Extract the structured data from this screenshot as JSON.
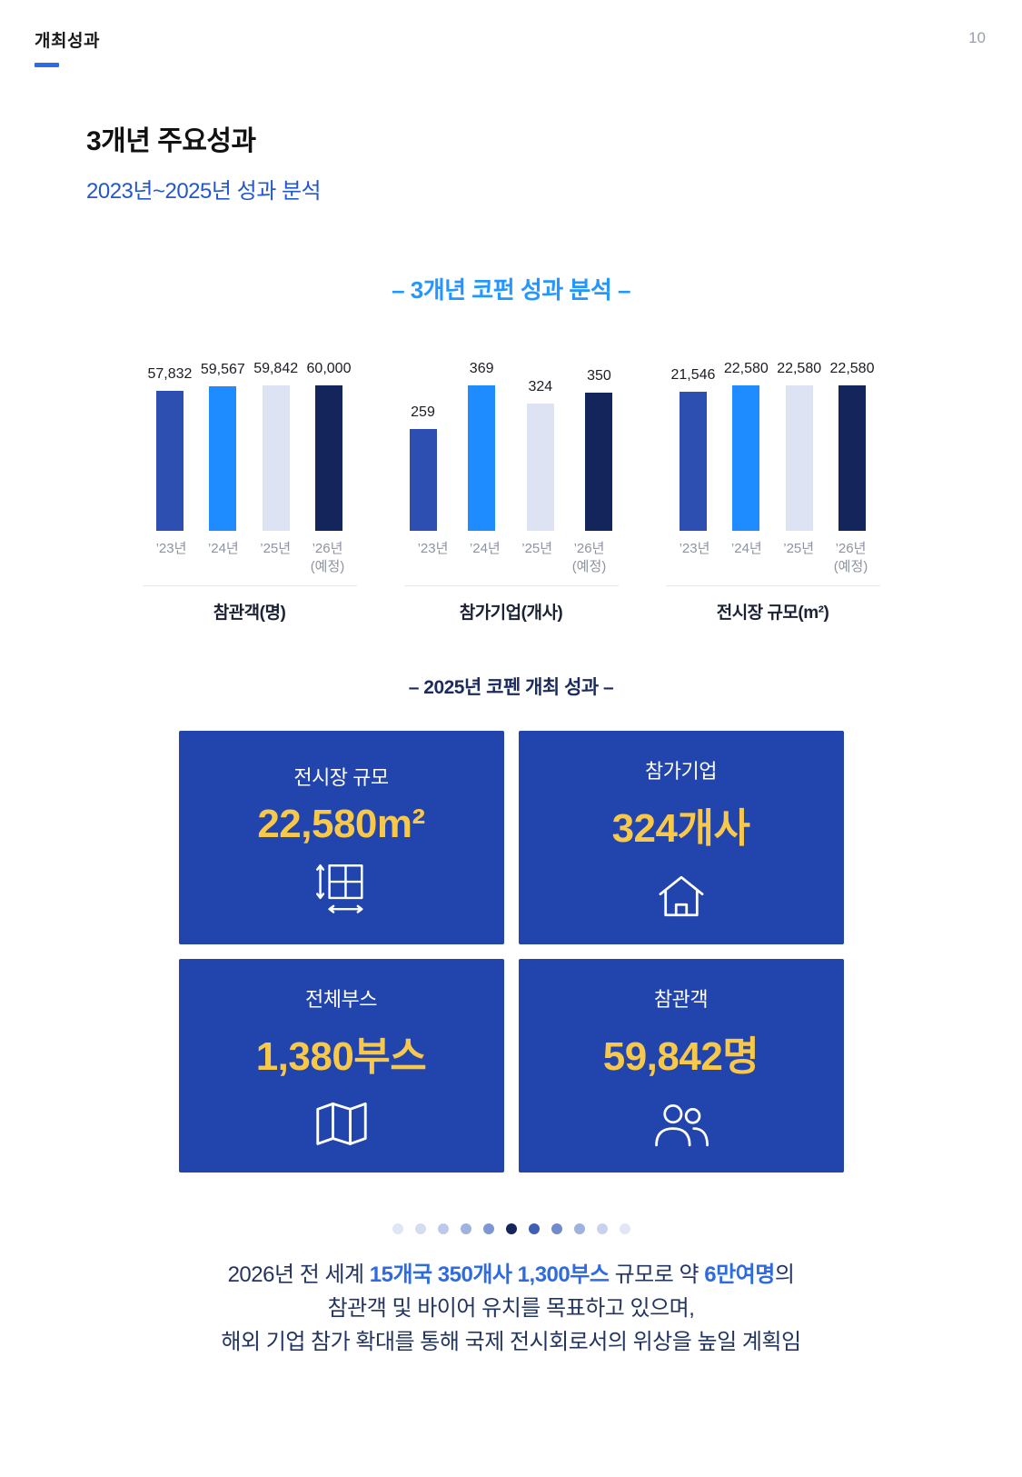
{
  "header": {
    "label": "개최성과",
    "page_number": "10"
  },
  "section": {
    "title": "3개년 주요성과",
    "subtitle": "2023년~2025년 성과 분석"
  },
  "charts_heading": "– 3개년 코펀 성과 분석 –",
  "chart_data": [
    {
      "type": "bar",
      "title": "참관객(명)",
      "categories": [
        "’23년",
        "’24년",
        "’25년",
        "’26년"
      ],
      "category_subs": [
        "",
        "",
        "",
        "(예정)"
      ],
      "values": [
        57832,
        59567,
        59842,
        60000
      ],
      "value_labels": [
        "57,832",
        "59,567",
        "59,842",
        "60,000"
      ]
    },
    {
      "type": "bar",
      "title": "참가기업(개사)",
      "categories": [
        "’23년",
        "’24년",
        "’25년",
        "’26년"
      ],
      "category_subs": [
        "",
        "",
        "",
        "(예정)"
      ],
      "values": [
        259,
        369,
        324,
        350
      ],
      "value_labels": [
        "259",
        "369",
        "324",
        "350"
      ]
    },
    {
      "type": "bar",
      "title": "전시장 규모(m²)",
      "categories": [
        "’23년",
        "’24년",
        "’25년",
        "’26년"
      ],
      "category_subs": [
        "",
        "",
        "",
        "(예정)"
      ],
      "values": [
        21546,
        22580,
        22580,
        22580
      ],
      "value_labels": [
        "21,546",
        "22,580",
        "22,580",
        "22,580"
      ]
    }
  ],
  "chart_style": {
    "bar_colors": [
      "#2d4fb2",
      "#1e8bff",
      "#dde3f2",
      "#14255c"
    ],
    "grid": false,
    "legend": "none",
    "baseline": "truncated"
  },
  "results_heading": "– 2025년 코펜 개최 성과 –",
  "cards": [
    {
      "label": "전시장 규모",
      "value": "22,580m²",
      "icon": "floor-plan-icon"
    },
    {
      "label": "참가기업",
      "value": "324개사",
      "icon": "house-icon"
    },
    {
      "label": "전체부스",
      "value": "1,380부스",
      "icon": "open-map-icon"
    },
    {
      "label": "참관객",
      "value": "59,842명",
      "icon": "visitors-icon"
    }
  ],
  "card_style": {
    "background": "#2144ad",
    "value_color": "#f8c84a"
  },
  "dots": [
    "#e0e6f4",
    "#d3dcf0",
    "#bccbe9",
    "#9fb3df",
    "#7e97d2",
    "#16265c",
    "#3d5fb4",
    "#6f8bcc",
    "#9fb3df",
    "#c7d2ec",
    "#e0e6f4"
  ],
  "footer": {
    "highlight_color": "#2e6bdf",
    "lines": [
      {
        "parts": [
          {
            "text": "2026년 전 세계 "
          },
          {
            "text": "15개국 350개사 1,300부스",
            "highlight": true
          },
          {
            "text": " 규모로 약 "
          },
          {
            "text": "6만여명",
            "highlight": true
          },
          {
            "text": "의"
          }
        ]
      },
      {
        "parts": [
          {
            "text": "참관객 및 바이어 유치를 목표하고 있으며,"
          }
        ]
      },
      {
        "parts": [
          {
            "text": "해외 기업 참가 확대를 통해 국제 전시회로서의 위상을 높일 계획임"
          }
        ]
      }
    ]
  }
}
